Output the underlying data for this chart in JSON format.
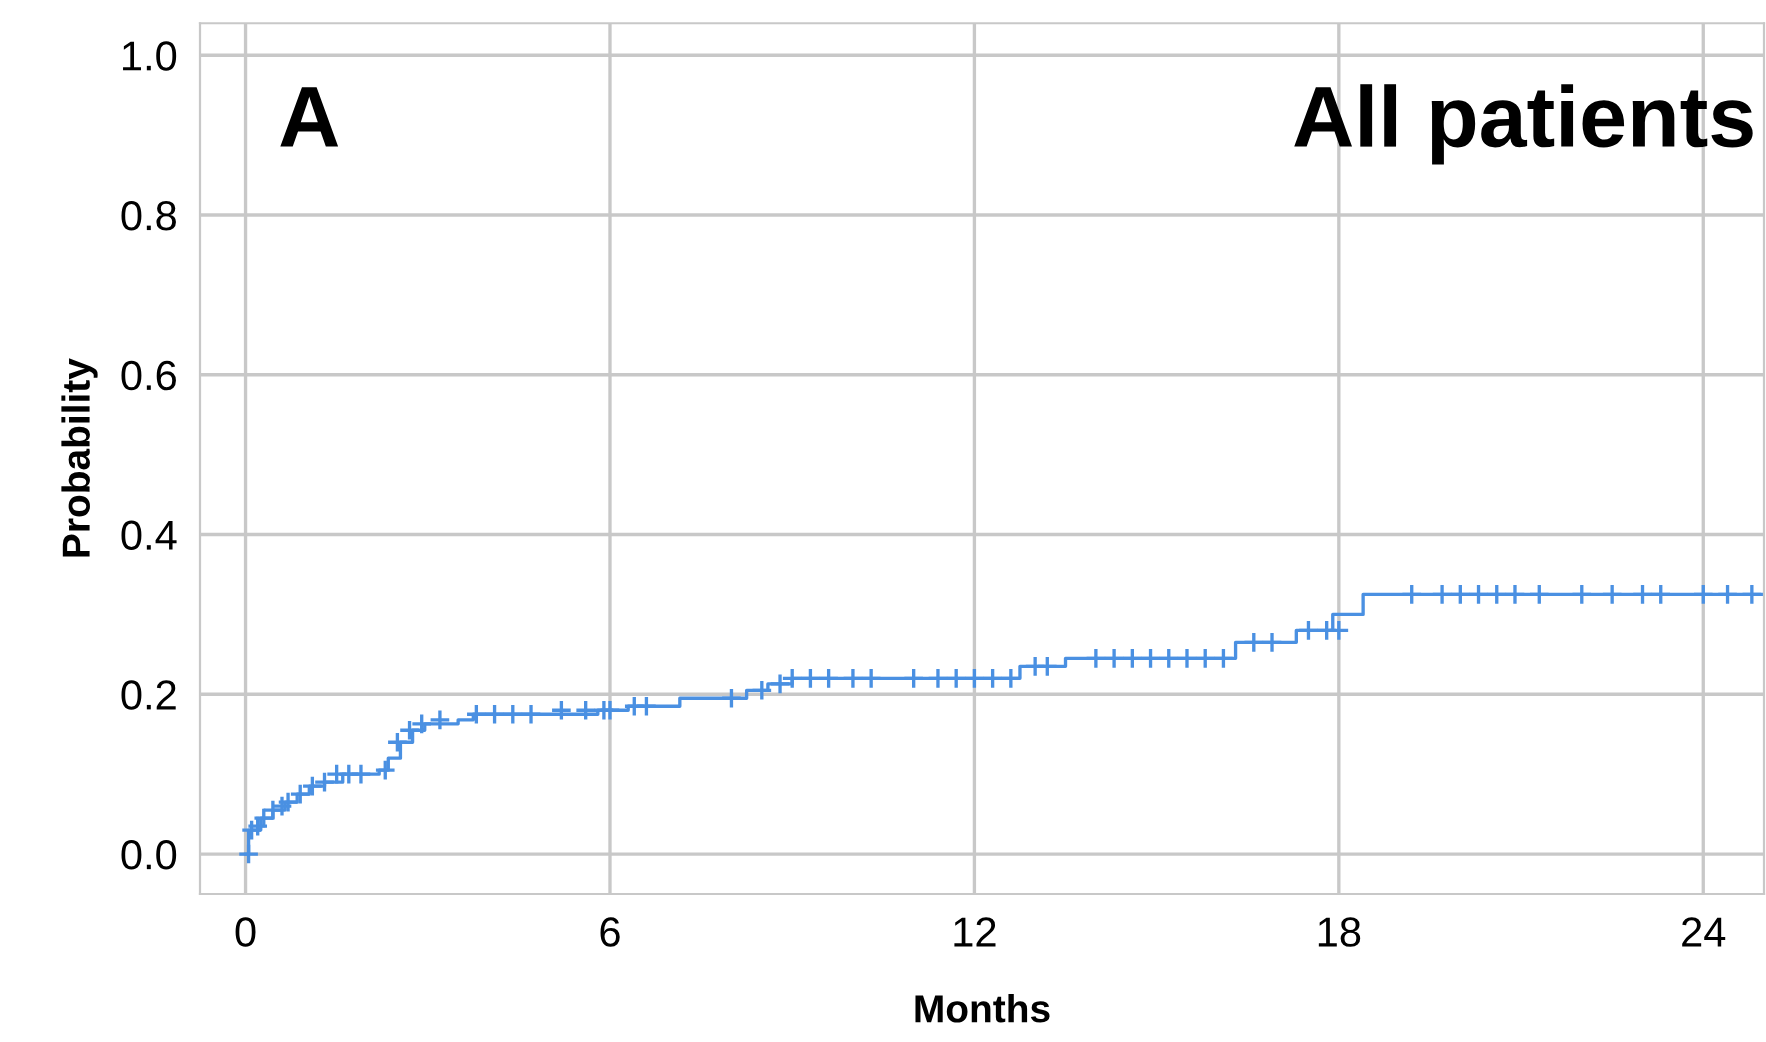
{
  "chart_data": {
    "type": "step",
    "xlabel": "Months",
    "ylabel": "Probability",
    "annotations": [
      "A",
      "All patients"
    ],
    "xlim": [
      -0.75,
      25
    ],
    "ylim": [
      -0.05,
      1.04
    ],
    "xticks": [
      0,
      6,
      12,
      18,
      24
    ],
    "yticks": [
      {
        "value": 0,
        "label": "0.0"
      },
      {
        "value": 0.2,
        "label": "0.2"
      },
      {
        "value": 0.4,
        "label": "0.4"
      },
      {
        "value": 0.6,
        "label": "0.6"
      },
      {
        "value": 0.8,
        "label": "0.8"
      },
      {
        "value": 1,
        "label": "1.0"
      }
    ],
    "grid": true,
    "line_style": "solid",
    "series": [
      {
        "color": "#4a90e2",
        "marker": "none",
        "x": [
          0,
          0.05,
          0.25,
          0.45,
          0.65,
          0.85,
          1.05,
          1.3,
          1.6,
          2.2,
          2.35,
          2.55,
          2.75,
          2.95,
          3.5,
          3.75,
          5.8,
          6.3,
          7.15,
          8.25,
          8.6,
          9.0,
          12.75,
          13.5,
          16.3,
          17.3,
          17.9,
          18.4,
          25
        ],
        "values": [
          0,
          0.03,
          0.045,
          0.055,
          0.065,
          0.075,
          0.085,
          0.09,
          0.1,
          0.105,
          0.12,
          0.14,
          0.155,
          0.163,
          0.168,
          0.175,
          0.18,
          0.185,
          0.195,
          0.205,
          0.213,
          0.22,
          0.235,
          0.245,
          0.265,
          0.28,
          0.3,
          0.325,
          0.325
        ]
      },
      {
        "type": "scatter",
        "color": "#4a90e2",
        "marker": "cross",
        "x": [
          0.05,
          0.1,
          0.2,
          0.3,
          0.45,
          0.6,
          0.7,
          0.9,
          1.1,
          1.3,
          1.5,
          1.7,
          1.9,
          2.3,
          2.5,
          2.7,
          2.9,
          3.2,
          3.8,
          4.1,
          4.4,
          4.7,
          5.2,
          5.6,
          5.9,
          6.0,
          6.4,
          6.6,
          8.0,
          8.5,
          8.8,
          9.0,
          9.3,
          9.6,
          10.0,
          10.3,
          11.0,
          11.4,
          11.7,
          12.0,
          12.3,
          12.6,
          13.0,
          13.2,
          14.0,
          14.3,
          14.6,
          14.9,
          15.2,
          15.5,
          15.8,
          16.1,
          16.6,
          16.9,
          17.5,
          17.8,
          18.0,
          19.2,
          19.7,
          20.0,
          20.3,
          20.6,
          20.9,
          21.3,
          22.0,
          22.5,
          23.0,
          23.3,
          24.0,
          24.4,
          24.8
        ],
        "values": [
          0,
          0.03,
          0.035,
          0.045,
          0.055,
          0.06,
          0.065,
          0.075,
          0.085,
          0.09,
          0.1,
          0.1,
          0.1,
          0.105,
          0.14,
          0.155,
          0.163,
          0.168,
          0.175,
          0.175,
          0.175,
          0.175,
          0.18,
          0.18,
          0.18,
          0.18,
          0.185,
          0.185,
          0.195,
          0.205,
          0.213,
          0.22,
          0.22,
          0.22,
          0.22,
          0.22,
          0.22,
          0.22,
          0.22,
          0.22,
          0.22,
          0.22,
          0.235,
          0.235,
          0.245,
          0.245,
          0.245,
          0.245,
          0.245,
          0.245,
          0.245,
          0.245,
          0.265,
          0.265,
          0.28,
          0.28,
          0.28,
          0.325,
          0.325,
          0.325,
          0.325,
          0.325,
          0.325,
          0.325,
          0.325,
          0.325,
          0.325,
          0.325,
          0.325,
          0.325,
          0.325
        ]
      }
    ]
  }
}
